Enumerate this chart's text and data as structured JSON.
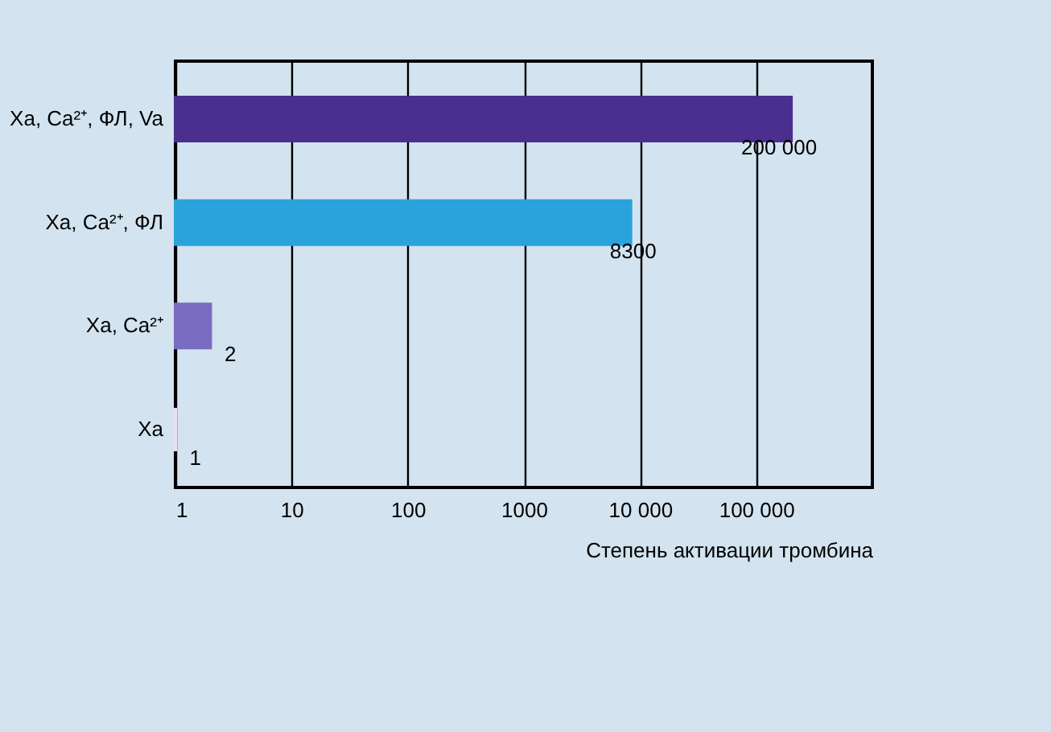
{
  "chart_data": {
    "type": "bar",
    "orientation": "horizontal",
    "log": "x",
    "xlabel": "Степень активации тромбина",
    "categories": [
      "Xa, Ca²⁺, ФЛ, Va",
      "Xa, Ca²⁺, ФЛ",
      "Xa, Ca²⁺",
      "Xa"
    ],
    "values": [
      200000,
      8300,
      2,
      1
    ],
    "colors": [
      "#4a2f8f",
      "#2aa3dc",
      "#7a6cc0",
      "#e4e0f2"
    ],
    "value_labels": [
      "200 000",
      "8300",
      "2",
      "1"
    ],
    "xlim": [
      1,
      1000000
    ],
    "xticks": [
      1,
      10,
      100,
      1000,
      {
        "value": 10000,
        "label": "10 000"
      },
      {
        "value": 100000,
        "label": "100 000"
      }
    ],
    "grid": "x"
  }
}
